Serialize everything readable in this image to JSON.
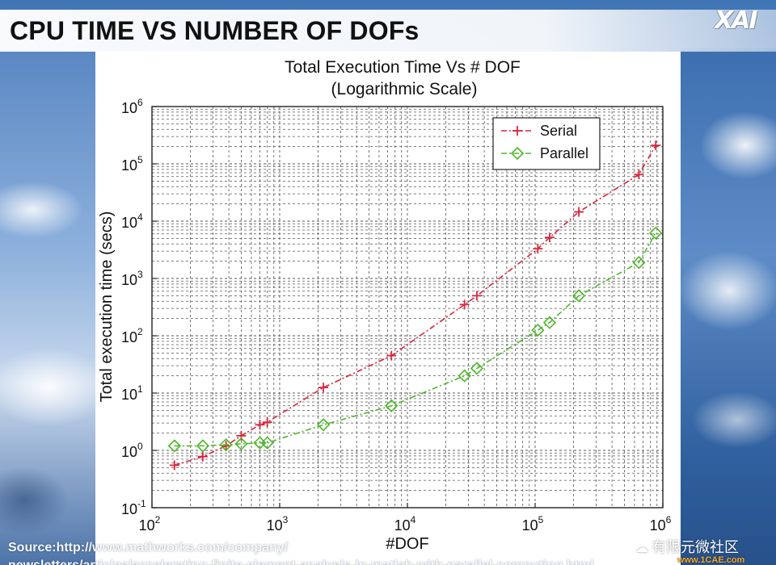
{
  "slide": {
    "title": "CPU TIME VS NUMBER OF DOFs",
    "logo_text": "XAI",
    "source_line1": "Source:http://www.mathworks.com/company/",
    "source_line2": "newsletters/articles/accelerating-finite-element-analysis-in-matlab-with-parallel-computing.html",
    "watermark_text": "有限元微社区",
    "watermark_site": "www.1CAE.com"
  },
  "colors": {
    "serial": "#d7263d",
    "parallel": "#4db82a",
    "grid": "#555555"
  },
  "chart_data": {
    "type": "line",
    "title": "Total Execution Time Vs # DOF",
    "subtitle": "(Logarithmic Scale)",
    "xlabel": "#DOF",
    "ylabel": "Total execution time (secs)",
    "xscale": "log",
    "yscale": "log",
    "xlim": [
      100,
      1000000
    ],
    "ylim": [
      0.1,
      1000000
    ],
    "grid": true,
    "legend_position": "top-right",
    "x_ticks": [
      {
        "value": 100,
        "base": "10",
        "exp": "2"
      },
      {
        "value": 1000,
        "base": "10",
        "exp": "3"
      },
      {
        "value": 10000,
        "base": "10",
        "exp": "4"
      },
      {
        "value": 100000,
        "base": "10",
        "exp": "5"
      },
      {
        "value": 1000000,
        "base": "10",
        "exp": "6"
      }
    ],
    "y_ticks": [
      {
        "value": 0.1,
        "base": "10",
        "exp": "-1"
      },
      {
        "value": 1,
        "base": "10",
        "exp": "0"
      },
      {
        "value": 10,
        "base": "10",
        "exp": "1"
      },
      {
        "value": 100,
        "base": "10",
        "exp": "2"
      },
      {
        "value": 1000,
        "base": "10",
        "exp": "3"
      },
      {
        "value": 10000,
        "base": "10",
        "exp": "4"
      },
      {
        "value": 100000,
        "base": "10",
        "exp": "5"
      },
      {
        "value": 1000000,
        "base": "10",
        "exp": "6"
      }
    ],
    "series": [
      {
        "name": "Serial",
        "marker": "plus",
        "line": "dash-dot",
        "x": [
          150,
          250,
          380,
          500,
          700,
          800,
          2200,
          7500,
          28000,
          35000,
          105000,
          130000,
          220000,
          650000,
          880000
        ],
        "y": [
          0.55,
          0.78,
          1.2,
          1.8,
          2.8,
          3.1,
          12.5,
          45,
          350,
          500,
          3300,
          5200,
          14500,
          65000,
          210000
        ]
      },
      {
        "name": "Parallel",
        "marker": "diamond",
        "line": "dash-dot",
        "x": [
          150,
          250,
          380,
          500,
          700,
          800,
          2200,
          7500,
          28000,
          35000,
          105000,
          130000,
          220000,
          650000,
          880000
        ],
        "y": [
          1.2,
          1.2,
          1.25,
          1.3,
          1.35,
          1.35,
          2.8,
          6,
          20,
          27,
          125,
          170,
          500,
          1900,
          6200
        ]
      }
    ]
  }
}
